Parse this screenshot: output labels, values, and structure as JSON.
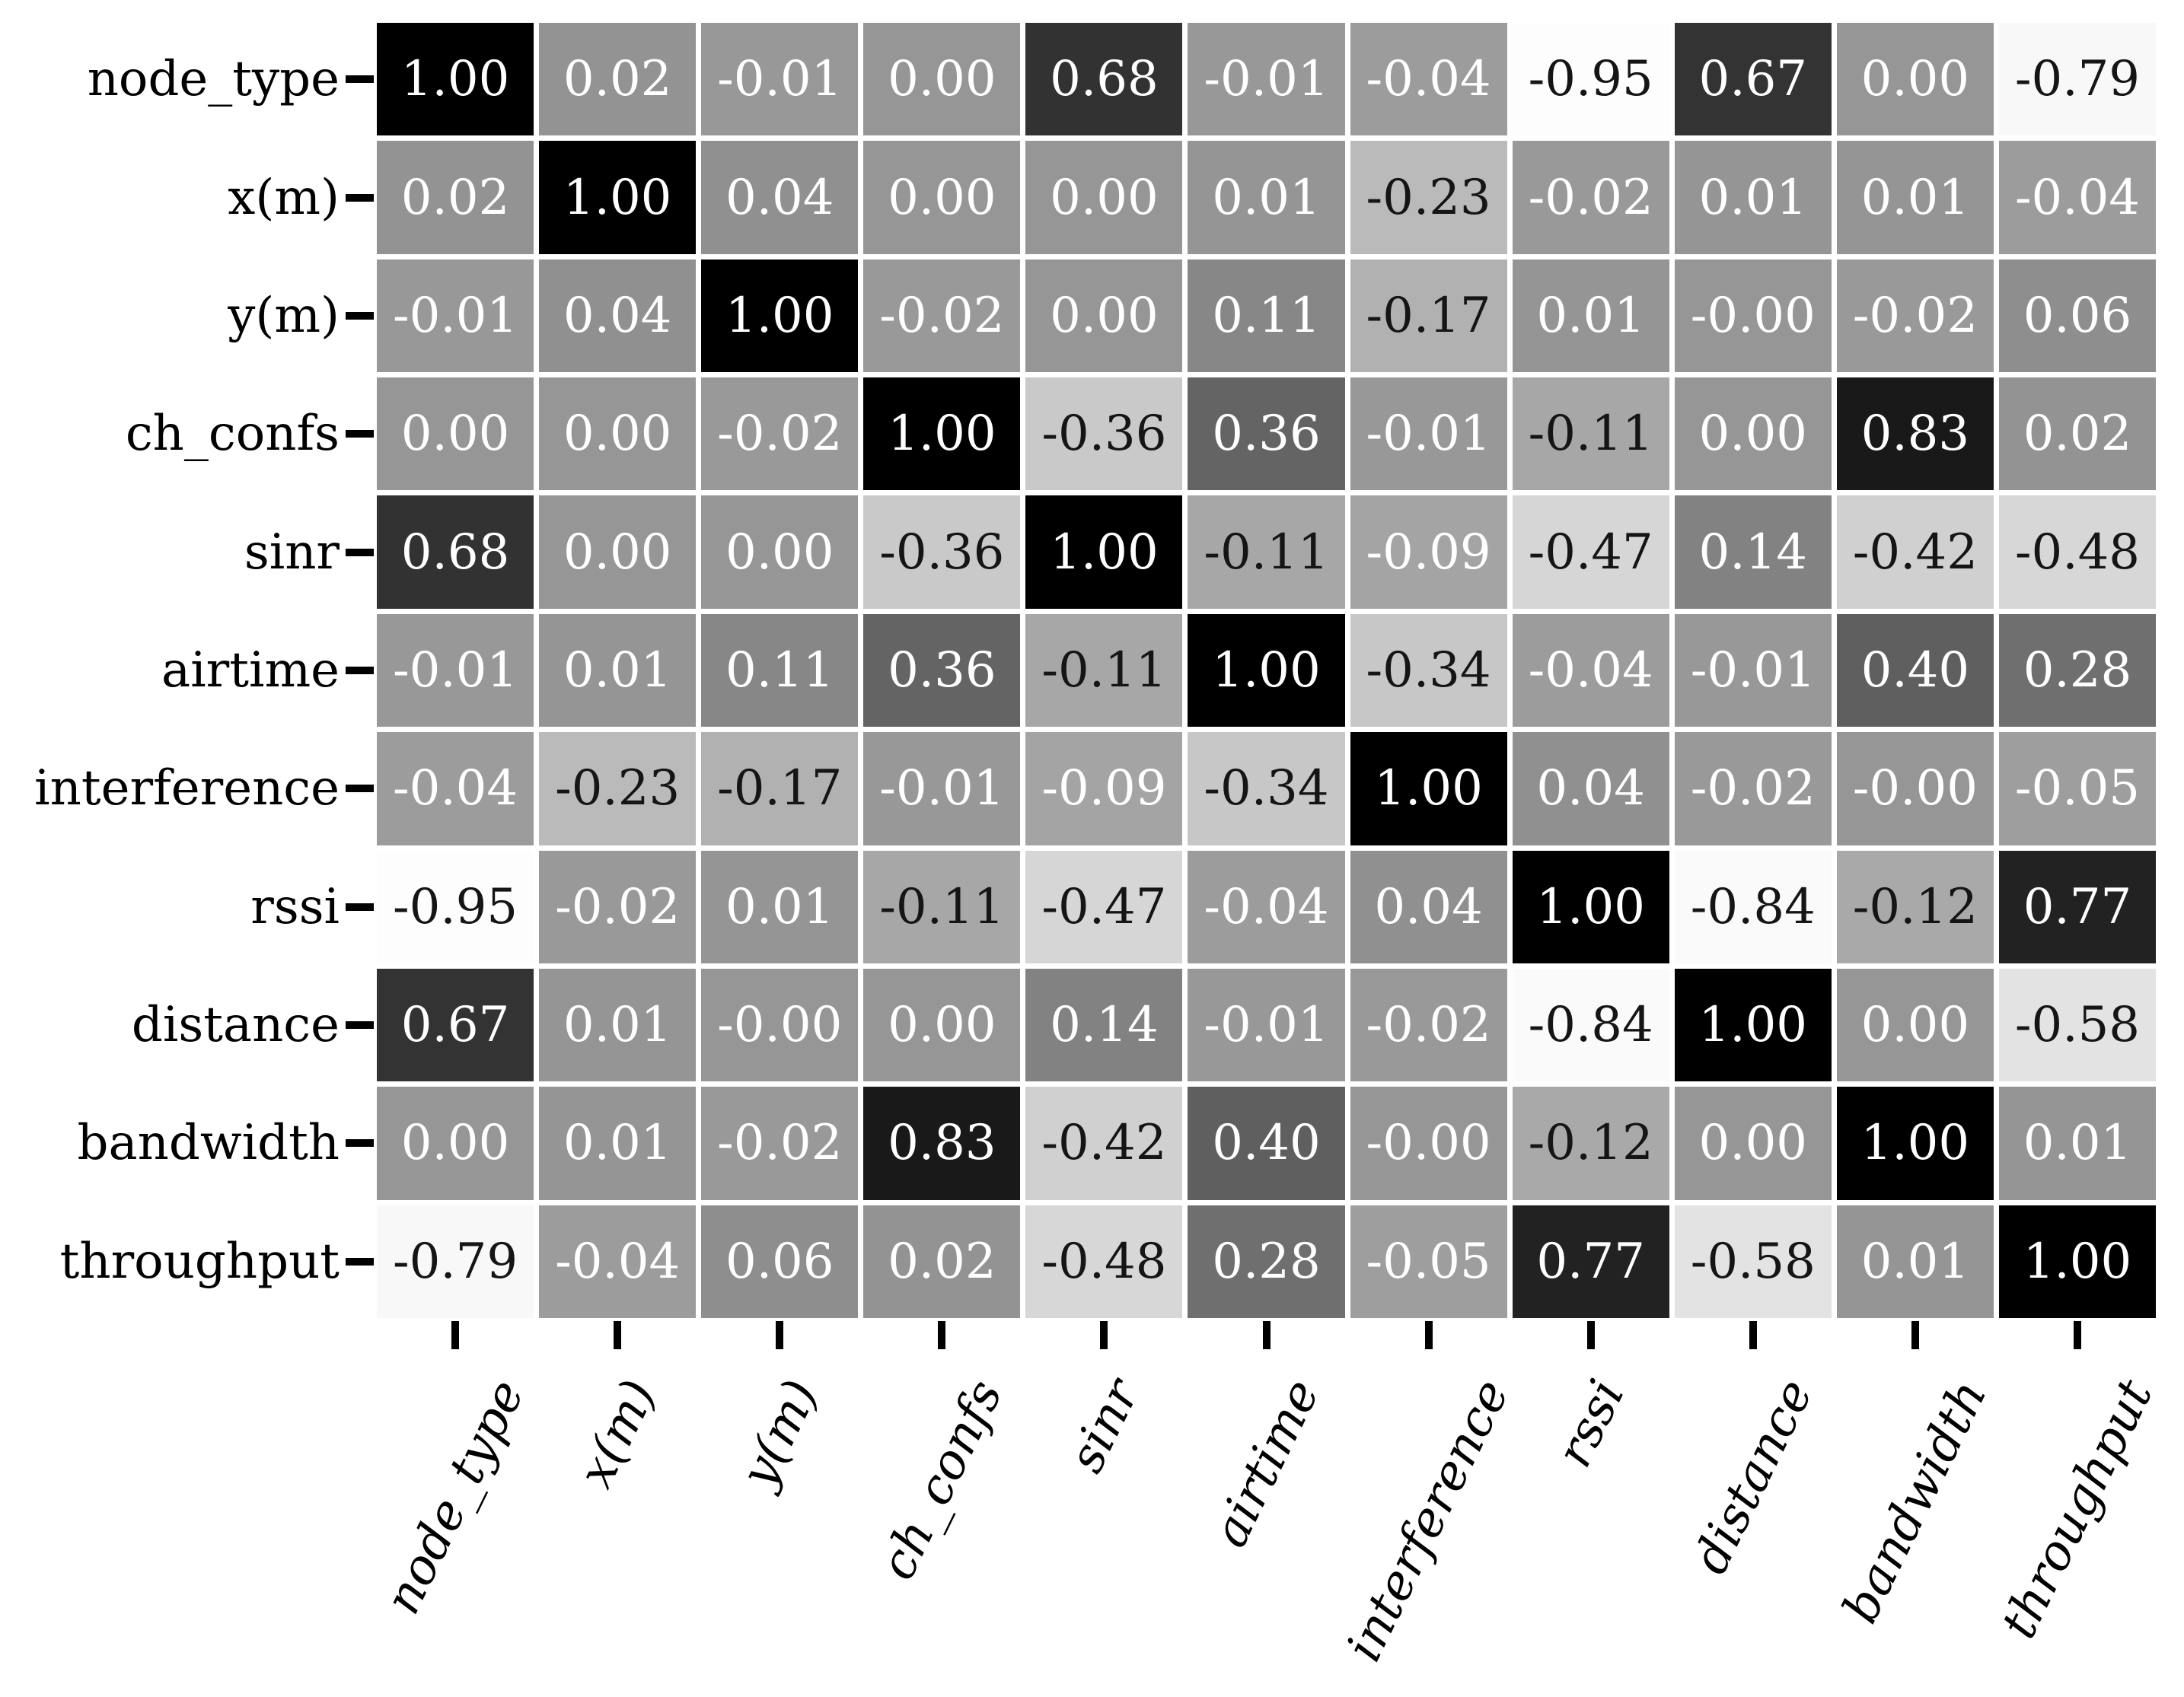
{
  "chart_data": {
    "type": "heatmap",
    "title": "",
    "description": "Correlation matrix heatmap with annotated coefficients",
    "labels": [
      "node_type",
      "x(m)",
      "y(m)",
      "ch_confs",
      "sinr",
      "airtime",
      "interference",
      "rssi",
      "distance",
      "bandwidth",
      "throughput"
    ],
    "matrix": [
      [
        "1.00",
        "0.02",
        "-0.01",
        "0.00",
        "0.68",
        "-0.01",
        "-0.04",
        "-0.95",
        "0.67",
        "0.00",
        "-0.79"
      ],
      [
        "0.02",
        "1.00",
        "0.04",
        "0.00",
        "0.00",
        "0.01",
        "-0.23",
        "-0.02",
        "0.01",
        "0.01",
        "-0.04"
      ],
      [
        "-0.01",
        "0.04",
        "1.00",
        "-0.02",
        "0.00",
        "0.11",
        "-0.17",
        "0.01",
        "-0.00",
        "-0.02",
        "0.06"
      ],
      [
        "0.00",
        "0.00",
        "-0.02",
        "1.00",
        "-0.36",
        "0.36",
        "-0.01",
        "-0.11",
        "0.00",
        "0.83",
        "0.02"
      ],
      [
        "0.68",
        "0.00",
        "0.00",
        "-0.36",
        "1.00",
        "-0.11",
        "-0.09",
        "-0.47",
        "0.14",
        "-0.42",
        "-0.48"
      ],
      [
        "-0.01",
        "0.01",
        "0.11",
        "0.36",
        "-0.11",
        "1.00",
        "-0.34",
        "-0.04",
        "-0.01",
        "0.40",
        "0.28"
      ],
      [
        "-0.04",
        "-0.23",
        "-0.17",
        "-0.01",
        "-0.09",
        "-0.34",
        "1.00",
        "0.04",
        "-0.02",
        "-0.00",
        "-0.05"
      ],
      [
        "-0.95",
        "-0.02",
        "0.01",
        "-0.11",
        "-0.47",
        "-0.04",
        "0.04",
        "1.00",
        "-0.84",
        "-0.12",
        "0.77"
      ],
      [
        "0.67",
        "0.01",
        "-0.00",
        "0.00",
        "0.14",
        "-0.01",
        "-0.02",
        "-0.84",
        "1.00",
        "0.00",
        "-0.58"
      ],
      [
        "0.00",
        "0.01",
        "-0.02",
        "0.83",
        "-0.42",
        "0.40",
        "-0.00",
        "-0.12",
        "0.00",
        "1.00",
        "0.01"
      ],
      [
        "-0.79",
        "-0.04",
        "0.06",
        "0.02",
        "-0.48",
        "0.28",
        "-0.05",
        "0.77",
        "-0.58",
        "0.01",
        "1.00"
      ]
    ],
    "colormap": "Greys",
    "vmin": -1,
    "vmax": 1,
    "legend": "none",
    "x_tick_rotation_deg": 64,
    "colors": {
      "background": "#ffffff",
      "tick": "#000000",
      "annotation_dark": "#151515",
      "annotation_light": "#ffffff",
      "axis_label": "#000000"
    }
  }
}
